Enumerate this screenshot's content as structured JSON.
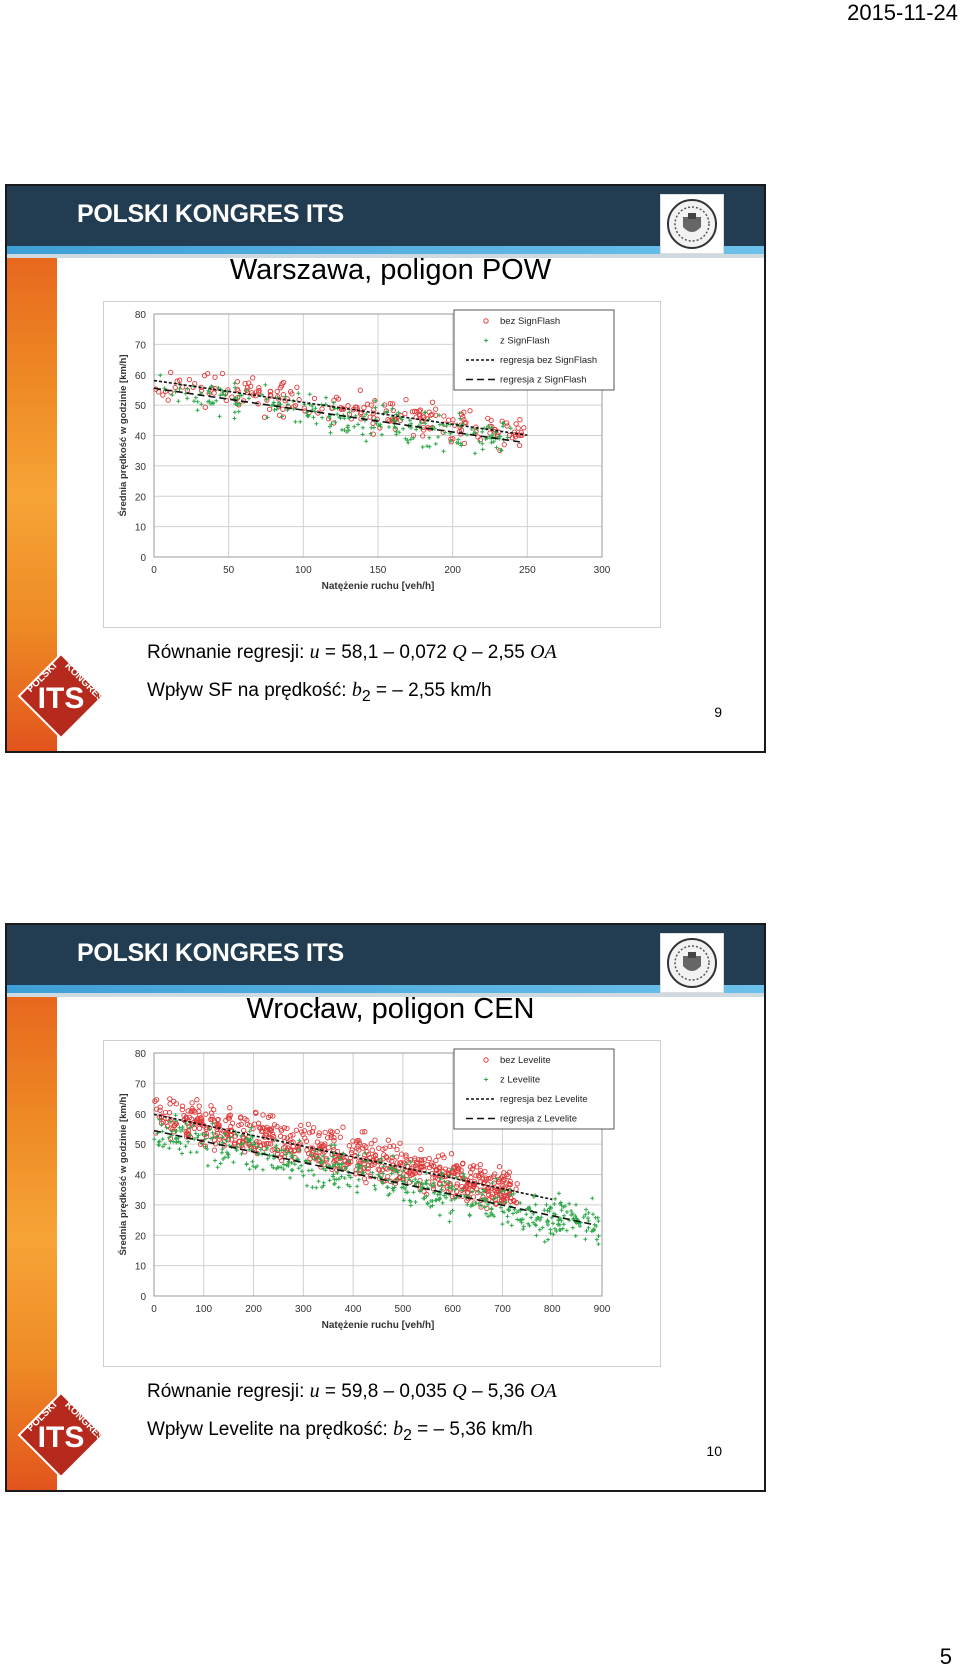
{
  "page": {
    "date": "2015-11-24",
    "page_number": "5"
  },
  "slides": [
    {
      "header": "POLSKI KONGRES ITS",
      "title": "Warszawa, poligon POW",
      "equation": {
        "prefix": "Równanie regresji: ",
        "u": "u",
        "eq": " = 58,1 – 0,072 ",
        "q": "Q",
        "mid": " – 2,55 ",
        "oa": "OA"
      },
      "impact": {
        "prefix": "Wpływ SF na prędkość: ",
        "b": "b",
        "sub": "2",
        "value": " = – 2,55 km/h"
      },
      "number": "9",
      "logo": {
        "polski": "POLSKI",
        "kongres": "KONGRES",
        "its": "ITS"
      }
    },
    {
      "header": "POLSKI KONGRES ITS",
      "title": "Wrocław, poligon CEN",
      "equation": {
        "prefix": "Równanie regresji: ",
        "u": "u",
        "eq": " = 59,8 – 0,035 ",
        "q": "Q",
        "mid": " – 5,36 ",
        "oa": "OA"
      },
      "impact": {
        "prefix": "Wpływ Levelite na prędkość: ",
        "b": "b",
        "sub": "2",
        "value": " = – 5,36 km/h"
      },
      "number": "10",
      "logo": {
        "polski": "POLSKI",
        "kongres": "KONGRES",
        "its": "ITS"
      }
    }
  ],
  "colors": {
    "header_bg": "#223d52",
    "red_series": "#e03a3a",
    "green_series": "#2ea84a"
  },
  "chart_data": [
    {
      "type": "scatter",
      "xlabel": "Natężenie ruchu [veh/h]",
      "ylabel": "Średnia prędkość w godzinie [km/h]",
      "xlim": [
        0,
        300
      ],
      "ylim": [
        0,
        80
      ],
      "xticks": [
        0,
        50,
        100,
        150,
        200,
        250,
        300
      ],
      "yticks": [
        0,
        10,
        20,
        30,
        40,
        50,
        60,
        70,
        80
      ],
      "grid": true,
      "legend_position": "top-right",
      "series": [
        {
          "name": "bez SignFlash",
          "marker": "circle",
          "color": "#e03a3a",
          "n_points": 220,
          "x_range": [
            0,
            250
          ],
          "trend": {
            "intercept": 58.1,
            "slope": -0.072
          },
          "spread": 4
        },
        {
          "name": "z SignFlash",
          "marker": "plus",
          "color": "#2ea84a",
          "n_points": 240,
          "x_range": [
            0,
            240
          ],
          "trend": {
            "intercept": 55.55,
            "slope": -0.072
          },
          "spread": 4
        },
        {
          "name": "regresja bez SignFlash",
          "kind": "line",
          "style": "dotted",
          "x": [
            0,
            250
          ],
          "y": [
            58.1,
            40.1
          ]
        },
        {
          "name": "regresja z SignFlash",
          "kind": "line",
          "style": "dashed",
          "x": [
            0,
            245
          ],
          "y": [
            55.55,
            37.9
          ]
        }
      ]
    },
    {
      "type": "scatter",
      "xlabel": "Natężenie ruchu [veh/h]",
      "ylabel": "Średnia prędkość w godzinie [km/h]",
      "xlim": [
        0,
        900
      ],
      "ylim": [
        0,
        80
      ],
      "xticks": [
        0,
        100,
        200,
        300,
        400,
        500,
        600,
        700,
        800,
        900
      ],
      "yticks": [
        0,
        10,
        20,
        30,
        40,
        50,
        60,
        70,
        80
      ],
      "grid": true,
      "legend_position": "top-right",
      "series": [
        {
          "name": "bez Levelite",
          "marker": "circle",
          "color": "#e03a3a",
          "n_points": 700,
          "x_range": [
            0,
            730
          ],
          "trend": {
            "intercept": 59.8,
            "slope": -0.035
          },
          "spread": 5
        },
        {
          "name": "z Levelite",
          "marker": "plus",
          "color": "#2ea84a",
          "n_points": 550,
          "x_range": [
            0,
            900
          ],
          "trend": {
            "intercept": 54.44,
            "slope": -0.035
          },
          "spread": 5
        },
        {
          "name": "regresja bez Levelite",
          "kind": "line",
          "style": "dotted",
          "x": [
            0,
            800
          ],
          "y": [
            59.8,
            31.8
          ]
        },
        {
          "name": "regresja z Levelite",
          "kind": "line",
          "style": "dashed",
          "x": [
            0,
            880
          ],
          "y": [
            54.44,
            23.6
          ]
        }
      ]
    }
  ]
}
